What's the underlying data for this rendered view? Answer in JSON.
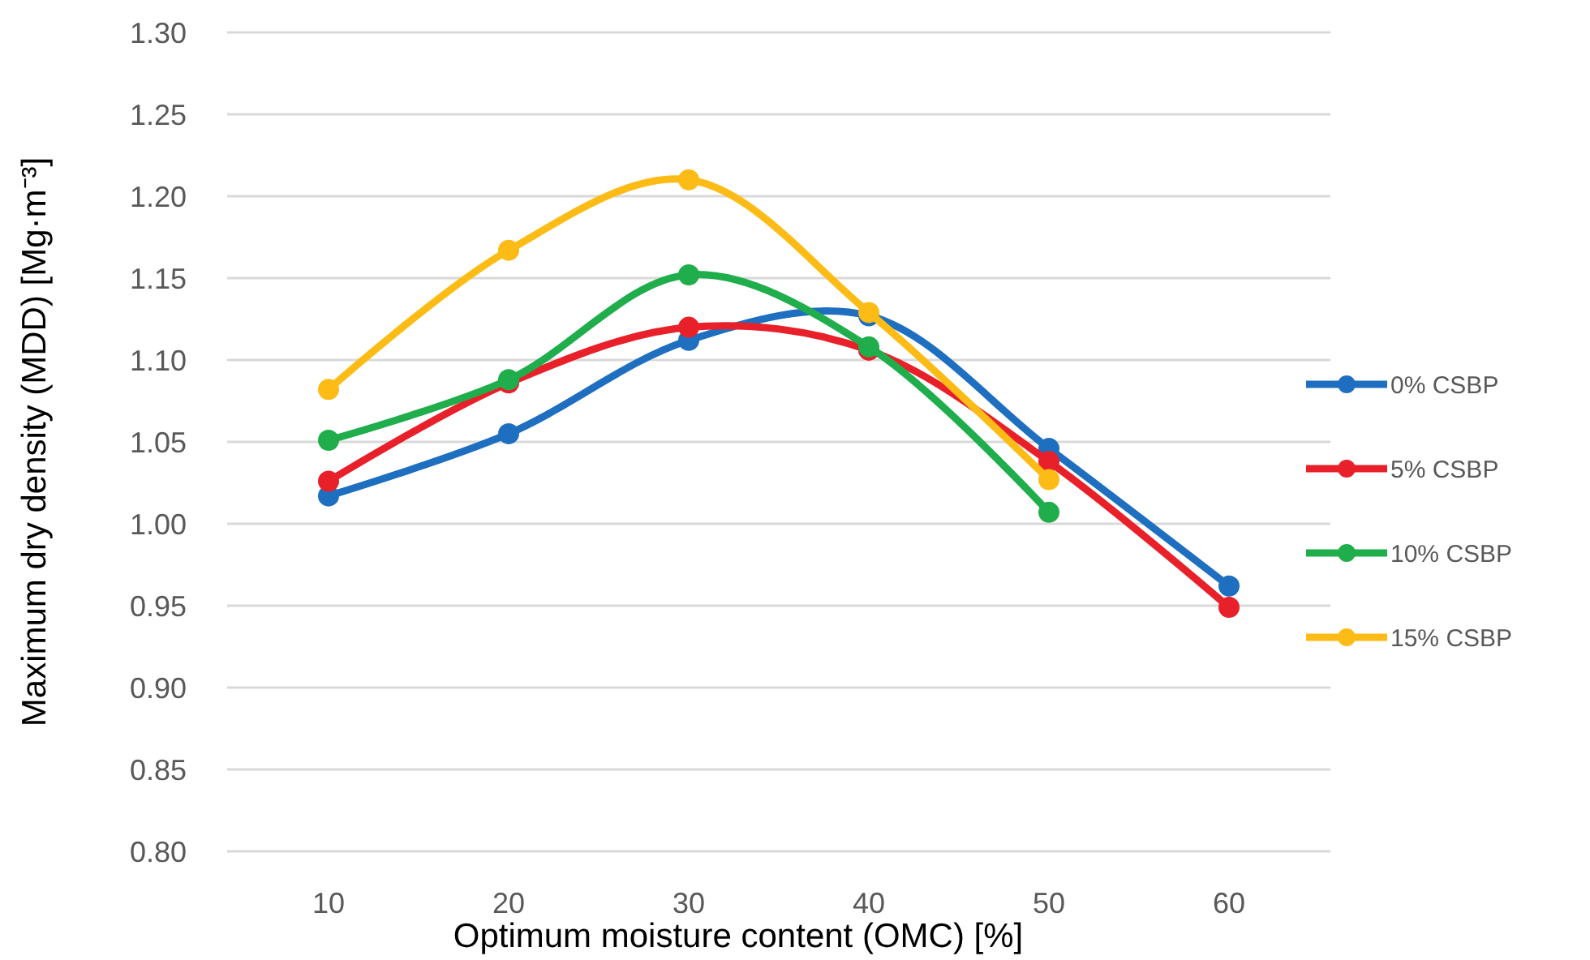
{
  "chart_data": {
    "type": "line",
    "xlabel": "Optimum moisture content (OMC) [%]",
    "ylabel": "Maximum dry density (MDD) [Mg·m⁻³]",
    "categories": [
      "10",
      "20",
      "30",
      "40",
      "50",
      "60"
    ],
    "series": [
      {
        "name": "0% CSBP",
        "color": "#1f6fc0",
        "values": [
          1.017,
          1.055,
          1.112,
          1.127,
          1.046,
          0.962
        ]
      },
      {
        "name": "5% CSBP",
        "color": "#e8202a",
        "values": [
          1.026,
          1.086,
          1.12,
          1.106,
          1.038,
          0.949
        ]
      },
      {
        "name": "10% CSBP",
        "color": "#1fae4b",
        "values": [
          1.051,
          1.088,
          1.152,
          1.108,
          1.007,
          null
        ]
      },
      {
        "name": "15% CSBP",
        "color": "#fdbb16",
        "values": [
          1.082,
          1.167,
          1.21,
          1.129,
          1.027,
          null
        ]
      }
    ],
    "ylim": [
      0.8,
      1.3
    ],
    "yticks": [
      {
        "value": 0.8,
        "label": "0.80"
      },
      {
        "value": 0.85,
        "label": "0.85"
      },
      {
        "value": 0.9,
        "label": "0.90"
      },
      {
        "value": 0.95,
        "label": "0.95"
      },
      {
        "value": 1.0,
        "label": "1.00"
      },
      {
        "value": 1.05,
        "label": "1.05"
      },
      {
        "value": 1.1,
        "label": "1.10"
      },
      {
        "value": 1.15,
        "label": "1.15"
      },
      {
        "value": 1.2,
        "label": "1.20"
      },
      {
        "value": 1.25,
        "label": "1.25"
      },
      {
        "value": 1.3,
        "label": "1.30"
      }
    ],
    "grid": "y",
    "legend": "right",
    "marker": "circle",
    "line_style": "solid"
  }
}
